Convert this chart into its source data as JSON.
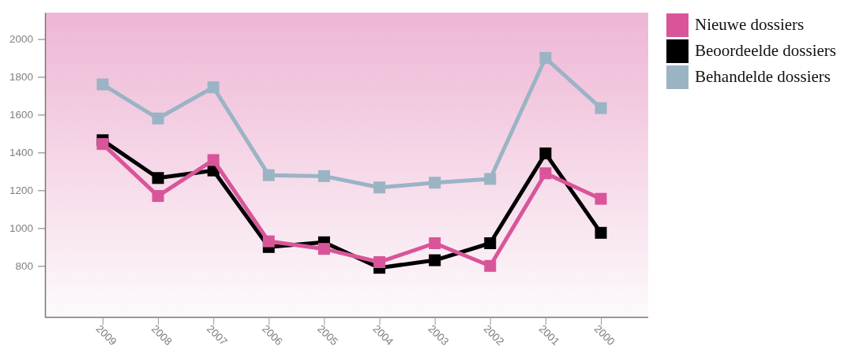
{
  "chart_data": {
    "type": "line",
    "categories": [
      "2009",
      "2008",
      "2007",
      "2006",
      "2005",
      "2004",
      "2003",
      "2002",
      "2001",
      "2000"
    ],
    "series": [
      {
        "name": "Nieuwe dossiers",
        "color": "#d9559a",
        "values": [
          1445,
          1170,
          1360,
          930,
          890,
          820,
          920,
          800,
          1290,
          1155
        ]
      },
      {
        "name": "Beoordeelde dossiers",
        "color": "#000000",
        "values": [
          1465,
          1265,
          1305,
          900,
          925,
          790,
          830,
          920,
          1395,
          975
        ]
      },
      {
        "name": "Behandelde dossiers",
        "color": "#9ab4c4",
        "values": [
          1760,
          1580,
          1745,
          1280,
          1275,
          1215,
          1240,
          1260,
          1900,
          1635
        ]
      }
    ],
    "ylim": [
      530,
      2140
    ],
    "yticks": [
      800,
      1000,
      1200,
      1400,
      1600,
      1800,
      2000
    ],
    "marker": "square",
    "legend": "top right"
  }
}
